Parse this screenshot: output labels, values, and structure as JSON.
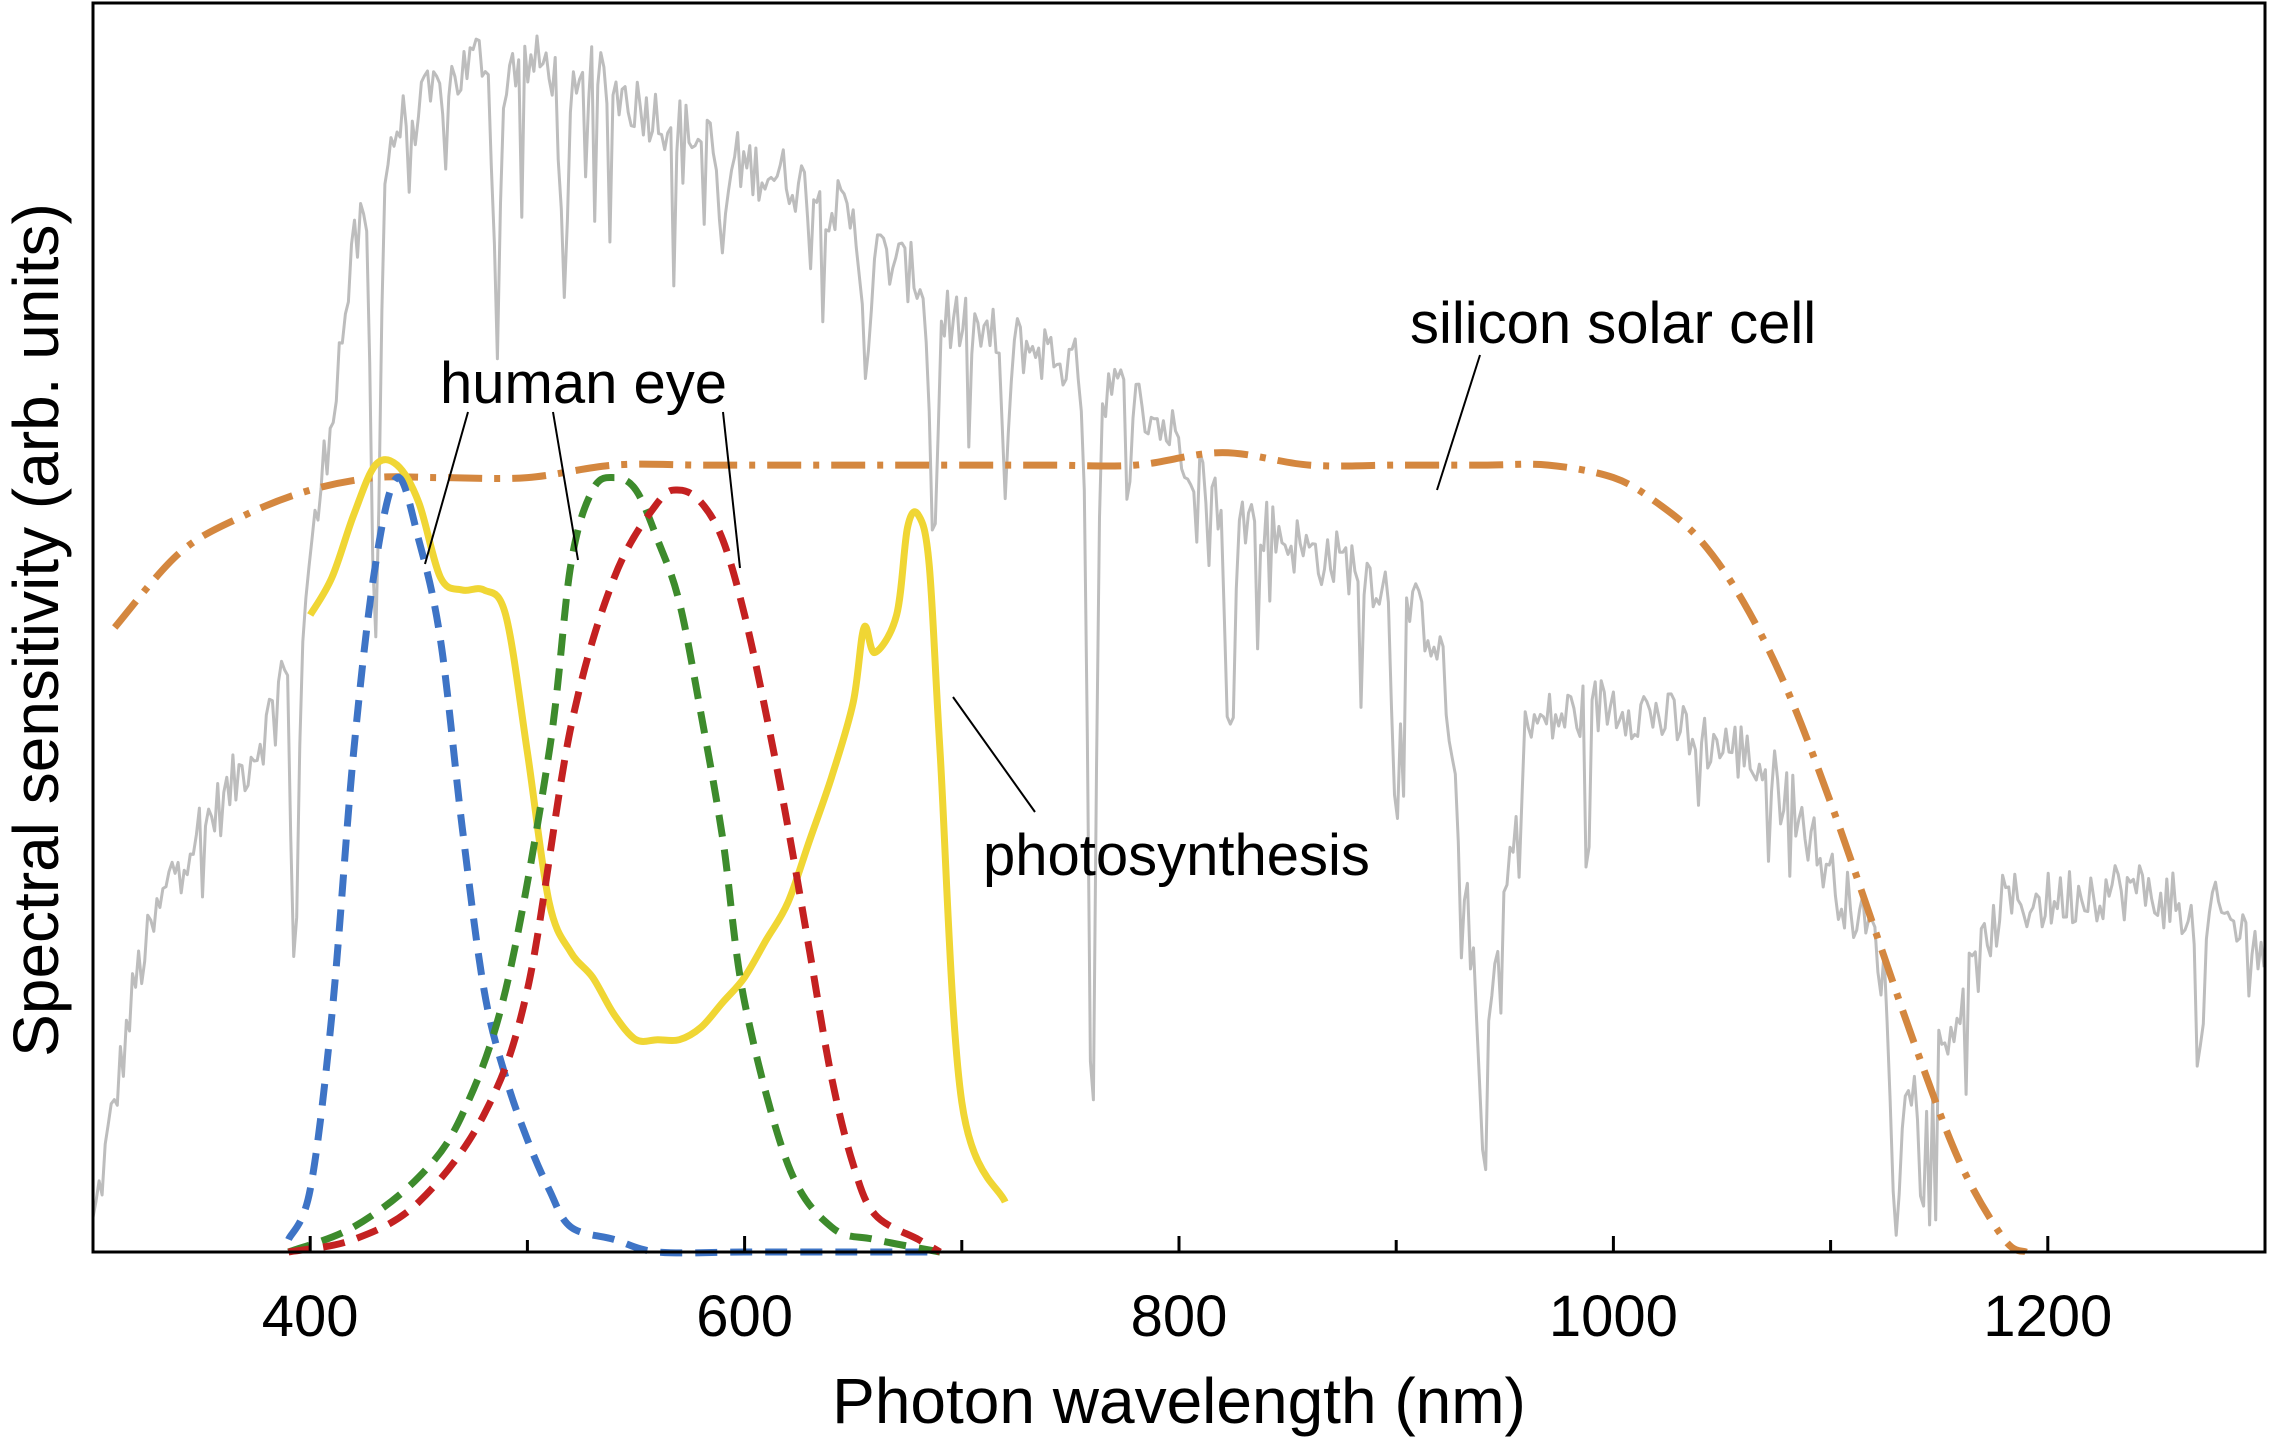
{
  "chart_data": {
    "type": "line",
    "xlabel": "Photon wavelength (nm)",
    "ylabel": "Spectral sensitivity (arb. units)",
    "xlim": [
      300,
      1300
    ],
    "ylim": [
      0,
      1.0
    ],
    "x_ticks_major": [
      400,
      600,
      800,
      1000,
      1200
    ],
    "x_ticks_minor": [
      500,
      700,
      900,
      1100
    ],
    "y_tick_labels": "none",
    "grid": false,
    "legend": "none (curves labeled directly with callout lines)",
    "series": [
      {
        "name": "",
        "key": "solar_spectrum",
        "color": "#bdbdbd",
        "style": "solid-noisy",
        "x": [
          300,
          320,
          340,
          360,
          380,
          400,
          420,
          440,
          460,
          480,
          500,
          520,
          540,
          560,
          580,
          600,
          620,
          640,
          660,
          680,
          700,
          720,
          740,
          760,
          780,
          800,
          820,
          840,
          860,
          880,
          900,
          920,
          940,
          960,
          980,
          1000,
          1020,
          1040,
          1060,
          1080,
          1100,
          1120,
          1140,
          1160,
          1180,
          1200,
          1220,
          1240,
          1260,
          1280,
          1300
        ],
        "y": [
          0.02,
          0.22,
          0.32,
          0.36,
          0.42,
          0.55,
          0.8,
          0.9,
          0.93,
          0.96,
          0.95,
          0.95,
          0.93,
          0.91,
          0.89,
          0.87,
          0.86,
          0.84,
          0.8,
          0.78,
          0.74,
          0.73,
          0.72,
          0.7,
          0.68,
          0.65,
          0.6,
          0.58,
          0.56,
          0.55,
          0.53,
          0.49,
          0.15,
          0.42,
          0.43,
          0.44,
          0.43,
          0.41,
          0.4,
          0.37,
          0.3,
          0.25,
          0.12,
          0.2,
          0.28,
          0.28,
          0.29,
          0.29,
          0.28,
          0.27,
          0.24
        ],
        "absorption_dips": [
          {
            "x": 393,
            "y": 0.24
          },
          {
            "x": 430,
            "y": 0.48
          },
          {
            "x": 486,
            "y": 0.76
          },
          {
            "x": 517,
            "y": 0.76
          },
          {
            "x": 590,
            "y": 0.8
          },
          {
            "x": 656,
            "y": 0.72
          },
          {
            "x": 687,
            "y": 0.57
          },
          {
            "x": 720,
            "y": 0.62
          },
          {
            "x": 760,
            "y": 0.1
          },
          {
            "x": 823,
            "y": 0.4
          },
          {
            "x": 900,
            "y": 0.36
          },
          {
            "x": 940,
            "y": 0.08
          },
          {
            "x": 1130,
            "y": 0.0
          },
          {
            "x": 1270,
            "y": 0.14
          }
        ]
      },
      {
        "name": "silicon solar cell",
        "key": "silicon",
        "color": "#d4873f",
        "style": "dash-dot",
        "x": [
          310,
          340,
          370,
          400,
          430,
          460,
          500,
          540,
          580,
          620,
          660,
          700,
          740,
          780,
          820,
          860,
          900,
          940,
          970,
          1000,
          1020,
          1040,
          1060,
          1080,
          1100,
          1120,
          1140,
          1160,
          1180,
          1190
        ],
        "y": [
          0.5,
          0.56,
          0.59,
          0.61,
          0.62,
          0.62,
          0.62,
          0.63,
          0.63,
          0.63,
          0.63,
          0.63,
          0.63,
          0.63,
          0.64,
          0.63,
          0.63,
          0.63,
          0.63,
          0.62,
          0.6,
          0.57,
          0.52,
          0.45,
          0.36,
          0.26,
          0.16,
          0.07,
          0.01,
          0.0
        ]
      },
      {
        "name": "photosynthesis",
        "key": "photosynthesis",
        "color": "#f0d634",
        "style": "solid",
        "x": [
          400,
          410,
          420,
          430,
          440,
          450,
          460,
          470,
          480,
          490,
          500,
          510,
          520,
          530,
          540,
          550,
          560,
          570,
          580,
          590,
          600,
          610,
          620,
          630,
          640,
          650,
          655,
          660,
          670,
          675,
          680,
          685,
          690,
          700,
          720
        ],
        "y": [
          0.51,
          0.54,
          0.59,
          0.63,
          0.63,
          0.6,
          0.54,
          0.53,
          0.53,
          0.51,
          0.4,
          0.28,
          0.24,
          0.22,
          0.19,
          0.17,
          0.17,
          0.17,
          0.18,
          0.2,
          0.22,
          0.25,
          0.28,
          0.33,
          0.38,
          0.44,
          0.5,
          0.48,
          0.51,
          0.58,
          0.59,
          0.55,
          0.4,
          0.12,
          0.04
        ]
      },
      {
        "name": "",
        "key": "human_eye_blue",
        "color": "#3e74c6",
        "style": "dashed",
        "x": [
          390,
          400,
          410,
          420,
          430,
          440,
          450,
          460,
          470,
          480,
          490,
          500,
          510,
          520,
          540,
          560,
          600,
          650,
          690
        ],
        "y": [
          0.01,
          0.05,
          0.19,
          0.4,
          0.55,
          0.62,
          0.57,
          0.49,
          0.34,
          0.21,
          0.14,
          0.09,
          0.05,
          0.02,
          0.01,
          0.0,
          0.0,
          0.0,
          0.0
        ]
      },
      {
        "name": "",
        "key": "human_eye_green",
        "color": "#3d8b2c",
        "style": "dashed",
        "x": [
          390,
          420,
          450,
          470,
          490,
          510,
          520,
          530,
          540,
          550,
          560,
          570,
          580,
          590,
          600,
          620,
          640,
          660,
          690
        ],
        "y": [
          0.0,
          0.02,
          0.06,
          0.11,
          0.21,
          0.4,
          0.55,
          0.61,
          0.62,
          0.61,
          0.57,
          0.52,
          0.43,
          0.33,
          0.2,
          0.07,
          0.02,
          0.01,
          0.0
        ]
      },
      {
        "name": "",
        "key": "human_eye_red",
        "color": "#c42121",
        "style": "dashed",
        "x": [
          390,
          420,
          450,
          480,
          500,
          520,
          540,
          560,
          570,
          580,
          590,
          600,
          610,
          620,
          630,
          640,
          650,
          660,
          680,
          690
        ],
        "y": [
          0.0,
          0.01,
          0.04,
          0.11,
          0.21,
          0.42,
          0.54,
          0.6,
          0.61,
          0.6,
          0.57,
          0.51,
          0.43,
          0.34,
          0.24,
          0.14,
          0.07,
          0.03,
          0.01,
          0.0
        ]
      }
    ],
    "annotations": [
      {
        "key": "human_eye",
        "text": "human eye"
      },
      {
        "key": "silicon",
        "text": "silicon solar cell"
      },
      {
        "key": "photosynthesis",
        "text": "photosynthesis"
      }
    ]
  }
}
